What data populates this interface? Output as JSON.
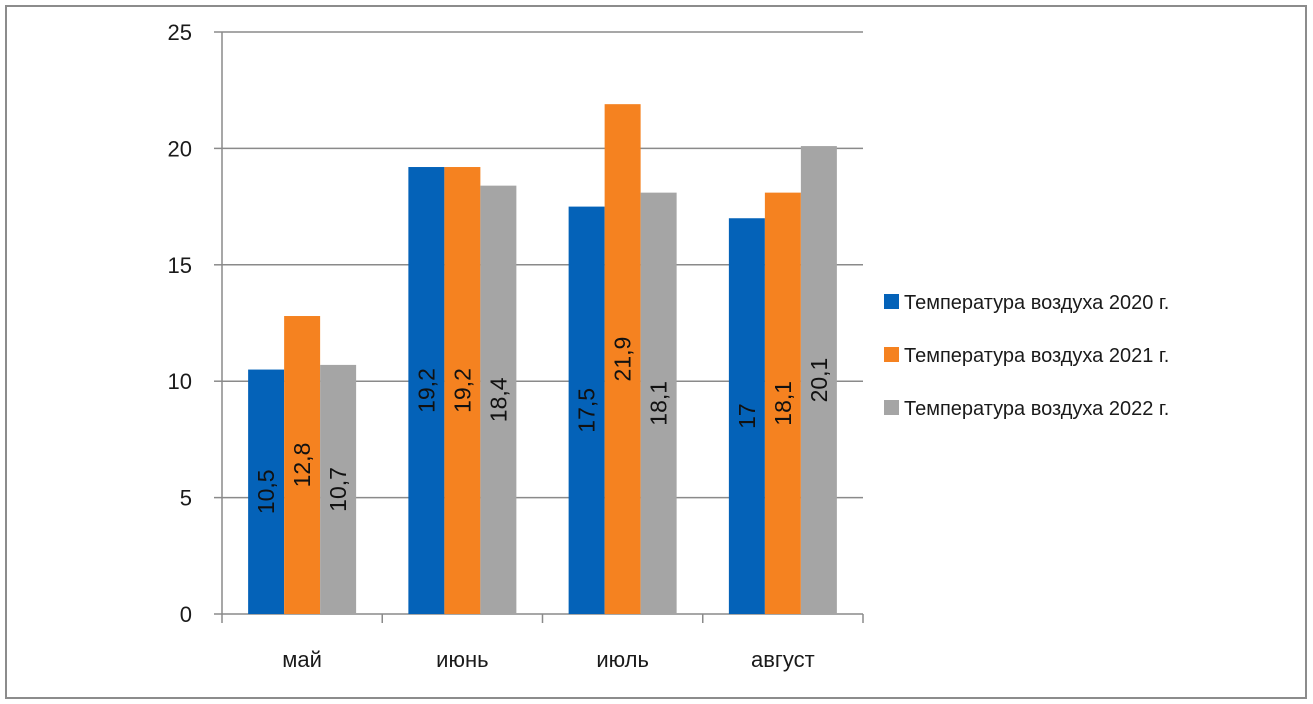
{
  "chart_data": {
    "type": "bar",
    "categories": [
      "май",
      "июнь",
      "июль",
      "август"
    ],
    "series": [
      {
        "name": "Температура воздуха 2020 г.",
        "color": "#0462b8",
        "values": [
          10.5,
          19.2,
          17.5,
          17
        ],
        "labels": [
          "10,5",
          "19,2",
          "17,5",
          "17"
        ]
      },
      {
        "name": "Температура воздуха 2021 г.",
        "color": "#f58220",
        "values": [
          12.8,
          19.2,
          21.9,
          18.1
        ],
        "labels": [
          "12,8",
          "19,2",
          "21,9",
          "18,1"
        ]
      },
      {
        "name": "Температура воздуха 2022 г.",
        "color": "#a5a5a5",
        "values": [
          10.7,
          18.4,
          18.1,
          20.1
        ],
        "labels": [
          "10,7",
          "18,4",
          "18,1",
          "20,1"
        ]
      }
    ],
    "yticks": [
      "0",
      "5",
      "10",
      "15",
      "20",
      "25"
    ],
    "ylim": [
      0,
      25
    ],
    "grid": true,
    "legend": "right",
    "title": "",
    "xlabel": "",
    "ylabel": ""
  }
}
